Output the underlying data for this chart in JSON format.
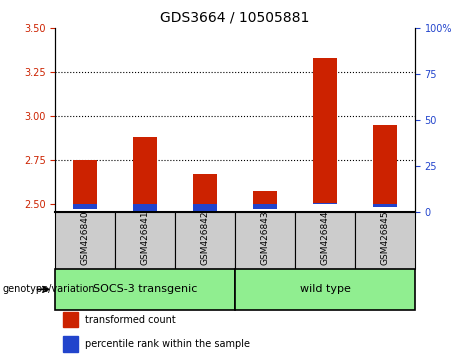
{
  "title": "GDS3664 / 10505881",
  "samples": [
    "GSM426840",
    "GSM426841",
    "GSM426842",
    "GSM426843",
    "GSM426844",
    "GSM426845"
  ],
  "red_values": [
    2.75,
    2.88,
    2.67,
    2.57,
    3.33,
    2.95
  ],
  "blue_percentiles": [
    2,
    1,
    1,
    2,
    5,
    3
  ],
  "ylim_left": [
    2.45,
    3.5
  ],
  "yticks_left": [
    2.5,
    2.75,
    3.0,
    3.25,
    3.5
  ],
  "yticks_right": [
    0,
    25,
    50,
    75,
    100
  ],
  "ylim_right": [
    0,
    100
  ],
  "group_labels": [
    "SOCS-3 transgenic",
    "wild type"
  ],
  "group_starts": [
    0,
    3
  ],
  "group_ends": [
    3,
    6
  ],
  "group_color": "#90ee90",
  "sample_box_color": "#cccccc",
  "bar_width": 0.4,
  "red_color": "#cc2200",
  "blue_color": "#2244cc",
  "base_value": 2.5,
  "legend_red": "transformed count",
  "legend_blue": "percentile rank within the sample",
  "genotype_label": "genotype/variation",
  "left_tick_color": "#cc2200",
  "right_tick_color": "#2244cc"
}
